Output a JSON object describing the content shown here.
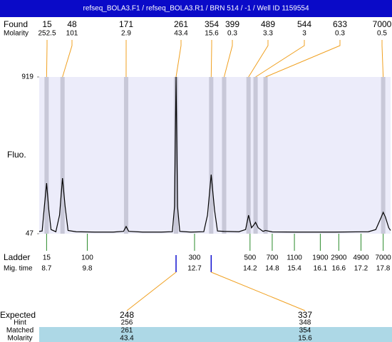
{
  "header": {
    "title": "refseq_BOLA3.F1 / refseq_BOLA3.R1 / BRN 514 / -1 / Well ID 1159554"
  },
  "chart_data": {
    "type": "electropherogram",
    "y_label": "Fluo.",
    "ylim": [
      47,
      919
    ],
    "yticks": [
      47,
      919
    ],
    "xlim": [
      8.5,
      18.0
    ],
    "trace": {
      "color": "#000000",
      "x": [
        8.5,
        8.58,
        8.64,
        8.7,
        8.76,
        8.82,
        8.95,
        9.05,
        9.13,
        9.2,
        9.28,
        9.5,
        10.0,
        10.5,
        10.78,
        10.85,
        10.92,
        11.3,
        11.8,
        12.1,
        12.16,
        12.2,
        12.24,
        12.3,
        12.6,
        12.95,
        13.05,
        13.15,
        13.24,
        13.32,
        13.5,
        13.9,
        14.08,
        14.16,
        14.24,
        14.3,
        14.35,
        14.42,
        14.55,
        14.62,
        14.8,
        15.5,
        16.5,
        17.4,
        17.6,
        17.75,
        17.8,
        17.86,
        17.95,
        18.0
      ],
      "values": [
        60,
        62,
        200,
        328,
        180,
        70,
        58,
        150,
        356,
        200,
        65,
        58,
        56,
        56,
        60,
        87,
        60,
        56,
        56,
        58,
        200,
        919,
        200,
        60,
        56,
        58,
        150,
        376,
        180,
        62,
        60,
        58,
        70,
        150,
        80,
        95,
        110,
        80,
        60,
        65,
        57,
        56,
        56,
        58,
        70,
        140,
        166,
        140,
        80,
        65
      ]
    },
    "found": {
      "label": "Found",
      "molarity_label": "Molarity",
      "sizes": [
        15,
        48,
        171,
        261,
        354,
        399,
        489,
        544,
        633,
        7000
      ],
      "molarity": [
        252.5,
        101,
        2.9,
        43.4,
        15.6,
        0.3,
        3.3,
        3,
        0.3,
        0.5
      ],
      "x": [
        8.7,
        9.13,
        10.85,
        12.2,
        13.15,
        13.5,
        14.16,
        14.35,
        14.62,
        17.8
      ]
    },
    "ladder": {
      "label": "Ladder",
      "time_label": "Mig. time",
      "sizes": [
        15,
        100,
        300,
        500,
        700,
        1100,
        1900,
        2900,
        4900,
        7000
      ],
      "mig_time": [
        8.7,
        9.8,
        12.7,
        14.2,
        14.8,
        15.4,
        16.1,
        16.6,
        17.2,
        17.8
      ]
    },
    "expected": {
      "label": "Expected",
      "hint_label": "Hint",
      "matched_label": "Matched",
      "molarity_label": "Molarity",
      "expected": [
        248,
        337
      ],
      "hint": [
        256,
        348
      ],
      "matched": [
        261,
        354
      ],
      "molarity": [
        43.4,
        15.6
      ]
    }
  }
}
